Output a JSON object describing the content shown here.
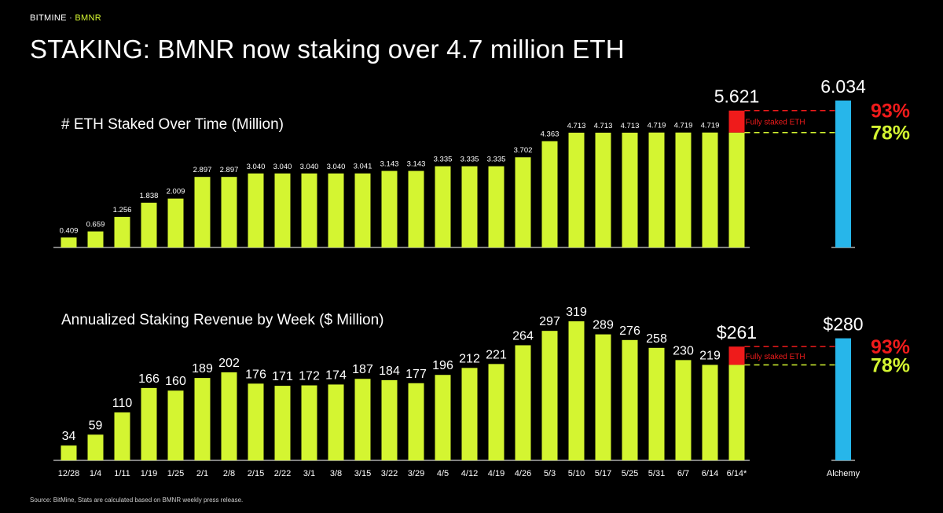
{
  "brand": {
    "name": "BITMINE",
    "separator": "·",
    "ticker": "BMNR"
  },
  "title": "STAKING: BMNR now staking over 4.7 million ETH",
  "source": "Source: BitMine, Stats are calculated based on BMNR weekly press release.",
  "colors": {
    "bar": "#d4f531",
    "target": "#ef1b1b",
    "benchmark": "#27b6ea",
    "pct_high": "#ef1b1b",
    "pct_low": "#d4f531"
  },
  "chart_data": [
    {
      "type": "bar",
      "title": "# ETH Staked Over Time (Million)",
      "categories": [
        "12/28",
        "1/4",
        "1/11",
        "1/19",
        "1/25",
        "2/1",
        "2/8",
        "2/15",
        "2/22",
        "3/1",
        "3/8",
        "3/15",
        "3/22",
        "3/29",
        "4/5",
        "4/12",
        "4/19",
        "4/26",
        "5/3",
        "5/10",
        "5/17",
        "5/25",
        "5/31",
        "6/7",
        "6/14",
        "6/14*"
      ],
      "values": [
        0.409,
        0.659,
        1.256,
        1.838,
        2.009,
        2.897,
        2.897,
        3.04,
        3.04,
        3.04,
        3.04,
        3.041,
        3.143,
        3.143,
        3.335,
        3.335,
        3.335,
        3.702,
        4.363,
        4.713,
        4.713,
        4.713,
        4.719,
        4.719,
        4.719,
        4.719
      ],
      "value_labels": [
        "0.409",
        "0.659",
        "1.256",
        "1.838",
        "2.009",
        "2.897",
        "2.897",
        "3.040",
        "3.040",
        "3.040",
        "3.040",
        "3.041",
        "3.143",
        "3.143",
        "3.335",
        "3.335",
        "3.335",
        "3.702",
        "4.363",
        "4.713",
        "4.713",
        "4.713",
        "4.719",
        "4.719",
        "4.719",
        ""
      ],
      "fully_staked": {
        "value": 5.621,
        "label": "5.621",
        "annotation": "Fully staked ETH"
      },
      "benchmark": {
        "category": "Alchemy",
        "value": 6.034,
        "label": "6.034"
      },
      "percent_lines": [
        {
          "label": "93%",
          "level": 5.621
        },
        {
          "label": "78%",
          "level": 4.719
        }
      ]
    },
    {
      "type": "bar",
      "title": "Annualized Staking Revenue by Week ($ Million)",
      "categories": [
        "12/28",
        "1/4",
        "1/11",
        "1/19",
        "1/25",
        "2/1",
        "2/8",
        "2/15",
        "2/22",
        "3/1",
        "3/8",
        "3/15",
        "3/22",
        "3/29",
        "4/5",
        "4/12",
        "4/19",
        "4/26",
        "5/3",
        "5/10",
        "5/17",
        "5/25",
        "5/31",
        "6/7",
        "6/14",
        "6/14*"
      ],
      "values": [
        34,
        59,
        110,
        166,
        160,
        189,
        202,
        176,
        171,
        172,
        174,
        187,
        184,
        177,
        196,
        212,
        221,
        264,
        297,
        319,
        289,
        276,
        258,
        230,
        219,
        219
      ],
      "value_labels": [
        "34",
        "59",
        "110",
        "166",
        "160",
        "189",
        "202",
        "176",
        "171",
        "172",
        "174",
        "187",
        "184",
        "177",
        "196",
        "212",
        "221",
        "264",
        "297",
        "319",
        "289",
        "276",
        "258",
        "230",
        "219",
        ""
      ],
      "fully_staked": {
        "value": 261,
        "label": "$261",
        "annotation": "Fully staked ETH"
      },
      "benchmark": {
        "category": "Alchemy",
        "value": 280,
        "label": "$280"
      },
      "percent_lines": [
        {
          "label": "93%",
          "level": 261
        },
        {
          "label": "78%",
          "level": 219
        }
      ]
    }
  ]
}
